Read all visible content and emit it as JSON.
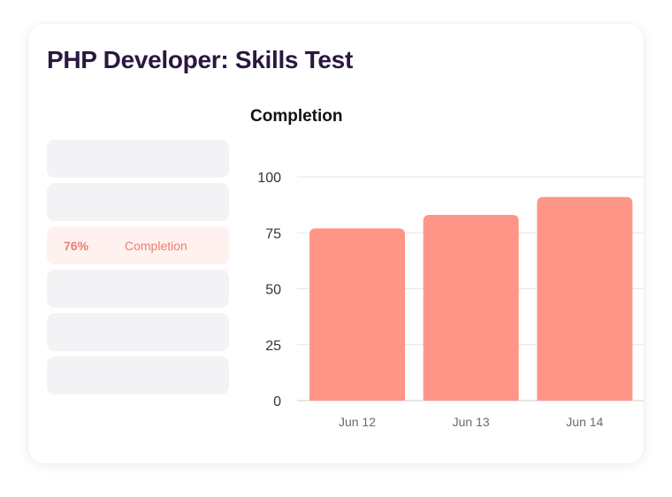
{
  "card": {
    "title": "PHP Developer: Skills Test"
  },
  "metrics": [
    {
      "value": "",
      "label": "",
      "active": false
    },
    {
      "value": "",
      "label": "",
      "active": false
    },
    {
      "value": "76%",
      "label": "Completion",
      "active": true
    },
    {
      "value": "",
      "label": "",
      "active": false
    },
    {
      "value": "",
      "label": "",
      "active": false
    },
    {
      "value": "",
      "label": "",
      "active": false
    }
  ],
  "colors": {
    "title": "#2a1840",
    "bar": "#ff9587",
    "active_text": "#e8806f",
    "active_bg": "#fff1ef",
    "placeholder_bg": "#f3f3f5"
  },
  "chart_data": {
    "type": "bar",
    "title": "Completion",
    "categories": [
      "Jun 12",
      "Jun 13",
      "Jun 14"
    ],
    "values": [
      77,
      83,
      91
    ],
    "ylim": [
      0,
      100
    ],
    "yticks": [
      0,
      25,
      50,
      75,
      100
    ],
    "grid": true,
    "xlabel": "",
    "ylabel": ""
  }
}
